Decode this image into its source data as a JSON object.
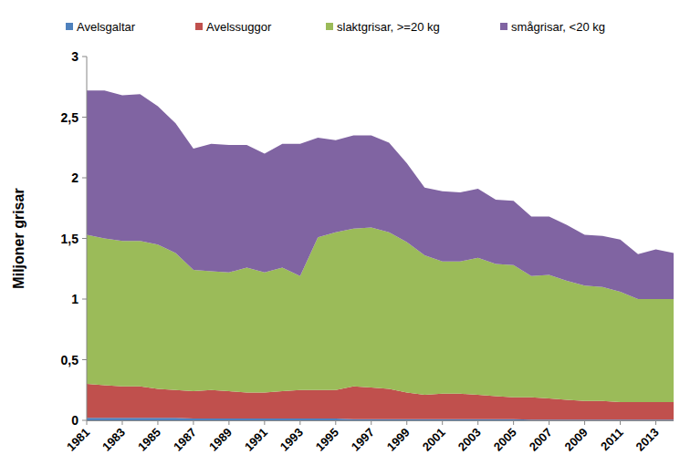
{
  "chart_data": {
    "type": "area",
    "stacked": true,
    "y_label": "Miljoner grisar",
    "x": [
      1981,
      1982,
      1983,
      1984,
      1985,
      1986,
      1987,
      1988,
      1989,
      1990,
      1991,
      1992,
      1993,
      1994,
      1995,
      1996,
      1997,
      1998,
      1999,
      2000,
      2001,
      2002,
      2003,
      2004,
      2005,
      2006,
      2007,
      2008,
      2009,
      2010,
      2011,
      2012,
      2013,
      2014
    ],
    "xlim": [
      1981,
      2014
    ],
    "xticks": [
      1981,
      1983,
      1985,
      1987,
      1989,
      1991,
      1993,
      1995,
      1997,
      1999,
      2001,
      2003,
      2005,
      2007,
      2009,
      2011,
      2013
    ],
    "ylim": [
      0,
      3
    ],
    "yticks": [
      0,
      {
        "value": 0.5,
        "label": "0,5"
      },
      1,
      {
        "value": 1.5,
        "label": "1,5"
      },
      2,
      {
        "value": 2.5,
        "label": "2,5"
      },
      3
    ],
    "grid": false,
    "legend": "top",
    "series": [
      {
        "name": "Avelsgaltar",
        "color": "#4f81bd",
        "values": [
          0.02,
          0.02,
          0.02,
          0.02,
          0.02,
          0.02,
          0.015,
          0.015,
          0.015,
          0.015,
          0.015,
          0.015,
          0.015,
          0.015,
          0.015,
          0.01,
          0.01,
          0.01,
          0.01,
          0.01,
          0.01,
          0.01,
          0.01,
          0.01,
          0.01,
          0.005,
          0.005,
          0.005,
          0.005,
          0.005,
          0.005,
          0.005,
          0.005,
          0.005
        ]
      },
      {
        "name": "Avelssuggor",
        "color": "#c0504d",
        "values": [
          0.28,
          0.27,
          0.26,
          0.26,
          0.24,
          0.23,
          0.225,
          0.235,
          0.225,
          0.215,
          0.215,
          0.225,
          0.235,
          0.235,
          0.235,
          0.27,
          0.26,
          0.25,
          0.22,
          0.2,
          0.21,
          0.21,
          0.2,
          0.19,
          0.18,
          0.185,
          0.175,
          0.165,
          0.155,
          0.155,
          0.145,
          0.145,
          0.145,
          0.145
        ]
      },
      {
        "name": "slaktgrisar, >=20 kg",
        "color": "#9bbb59",
        "values": [
          1.23,
          1.21,
          1.2,
          1.2,
          1.19,
          1.13,
          1.0,
          0.98,
          0.98,
          1.03,
          0.99,
          1.02,
          0.94,
          1.26,
          1.3,
          1.3,
          1.32,
          1.29,
          1.24,
          1.15,
          1.09,
          1.09,
          1.13,
          1.09,
          1.09,
          1.0,
          1.02,
          0.98,
          0.95,
          0.94,
          0.91,
          0.85,
          0.85,
          0.85
        ]
      },
      {
        "name": "smågrisar, <20 kg",
        "color": "#8064a2",
        "values": [
          1.19,
          1.22,
          1.2,
          1.21,
          1.14,
          1.07,
          1.0,
          1.05,
          1.05,
          1.01,
          0.98,
          1.02,
          1.09,
          0.82,
          0.76,
          0.77,
          0.76,
          0.74,
          0.65,
          0.56,
          0.58,
          0.57,
          0.57,
          0.53,
          0.53,
          0.49,
          0.48,
          0.46,
          0.42,
          0.42,
          0.43,
          0.37,
          0.41,
          0.38
        ]
      }
    ]
  }
}
